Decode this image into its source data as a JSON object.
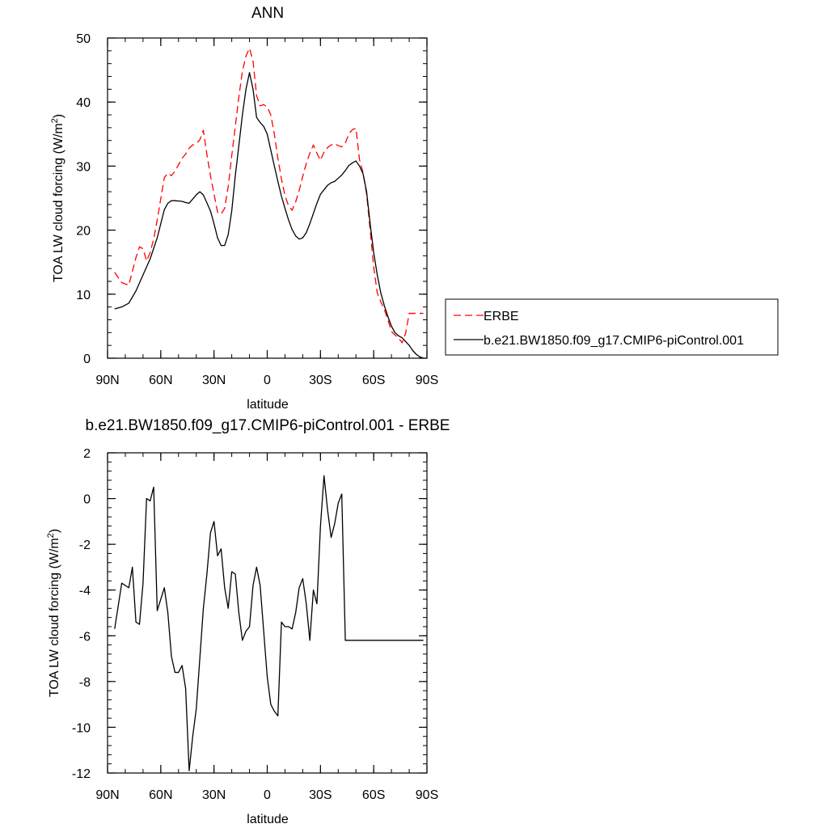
{
  "chart_data": [
    {
      "type": "line",
      "title": "ANN",
      "xlabel": "latitude",
      "ylabel": "TOA LW cloud forcing (W/m",
      "ylabel_sup": "2",
      "ylabel_close": ")",
      "xlim": [
        90,
        -90
      ],
      "ylim": [
        0,
        50
      ],
      "x_ticks": [
        {
          "value": 90,
          "label": "90N"
        },
        {
          "value": 60,
          "label": "60N"
        },
        {
          "value": 30,
          "label": "30N"
        },
        {
          "value": 0,
          "label": "0"
        },
        {
          "value": -30,
          "label": "30S"
        },
        {
          "value": -60,
          "label": "60S"
        },
        {
          "value": -90,
          "label": "90S"
        }
      ],
      "y_ticks": [
        {
          "value": 0,
          "label": "0"
        },
        {
          "value": 10,
          "label": "10"
        },
        {
          "value": 20,
          "label": "20"
        },
        {
          "value": 30,
          "label": "30"
        },
        {
          "value": 40,
          "label": "40"
        },
        {
          "value": 50,
          "label": "50"
        }
      ],
      "legend_position": "right",
      "series": [
        {
          "name": "ERBE",
          "color": "#ff0000",
          "dash": true,
          "x": [
            86,
            82,
            78,
            74,
            72,
            70,
            68,
            66,
            64,
            62,
            58,
            56,
            54,
            52,
            48,
            46,
            44,
            42,
            40,
            38,
            36,
            34,
            32,
            28,
            26,
            24,
            22,
            20,
            18,
            16,
            14,
            12,
            10,
            8,
            6,
            4,
            2,
            0,
            -2,
            -4,
            -6,
            -8,
            -10,
            -12,
            -14,
            -16,
            -18,
            -20,
            -22,
            -24,
            -26,
            -28,
            -30,
            -32,
            -34,
            -36,
            -38,
            -40,
            -42,
            -44,
            -46,
            -48,
            -50,
            -52,
            -54,
            -56,
            -58,
            -60,
            -62,
            -64,
            -66,
            -68,
            -70,
            -72,
            -74,
            -76,
            -78,
            -80,
            -82,
            -84,
            -86,
            -88
          ],
          "y": [
            13.4,
            11.8,
            11.4,
            15.7,
            17.4,
            17.1,
            15.2,
            16.5,
            18.6,
            21.6,
            28.2,
            28.9,
            28.5,
            29.2,
            31.2,
            31.9,
            32.8,
            33.3,
            33.5,
            34.1,
            35.6,
            31.8,
            28.5,
            22.8,
            22.5,
            23.4,
            26.8,
            31.6,
            36.2,
            40.8,
            44.8,
            47.2,
            48.4,
            46.4,
            41.0,
            39.4,
            39.6,
            39.2,
            38.0,
            35.0,
            31.2,
            28.0,
            25.4,
            23.8,
            23.1,
            24.4,
            26.2,
            28.4,
            30.4,
            32.0,
            33.3,
            32.0,
            30.9,
            32.2,
            32.9,
            33.3,
            33.5,
            33.2,
            33.0,
            33.6,
            35.0,
            35.7,
            35.9,
            31.0,
            29.0,
            25.6,
            20.0,
            14.2,
            10.2,
            8.8,
            7.6,
            6.0,
            4.2,
            3.6,
            3.2,
            2.4,
            3.9,
            7.0,
            7.0,
            7.0,
            7.0,
            7.0
          ]
        },
        {
          "name": "b.e21.BW1850.f09_g17.CMIP6-piControl.001",
          "color": "#000000",
          "dash": false,
          "x": [
            86,
            82,
            78,
            74,
            70,
            66,
            62,
            58,
            56,
            54,
            52,
            48,
            46,
            44,
            40,
            38,
            36,
            32,
            30,
            28,
            26,
            24,
            22,
            20,
            18,
            16,
            14,
            12,
            10,
            8,
            6,
            4,
            2,
            0,
            -2,
            -4,
            -6,
            -8,
            -10,
            -12,
            -14,
            -16,
            -18,
            -20,
            -22,
            -24,
            -26,
            -28,
            -30,
            -32,
            -34,
            -36,
            -38,
            -40,
            -42,
            -44,
            -46,
            -48,
            -50,
            -52,
            -54,
            -56,
            -58,
            -60,
            -62,
            -64,
            -66,
            -68,
            -70,
            -72,
            -74,
            -76,
            -78,
            -80,
            -82,
            -84,
            -86,
            -88
          ],
          "y": [
            7.7,
            8.0,
            8.6,
            10.5,
            13.0,
            15.5,
            18.8,
            23.2,
            24.2,
            24.6,
            24.6,
            24.5,
            24.3,
            24.2,
            25.5,
            26.0,
            25.5,
            23.0,
            21.0,
            18.8,
            17.6,
            17.6,
            19.3,
            23.0,
            28.5,
            33.2,
            38.0,
            42.0,
            44.6,
            42.0,
            37.6,
            36.8,
            36.2,
            35.0,
            32.5,
            30.0,
            27.6,
            25.3,
            23.4,
            21.6,
            20.1,
            19.1,
            18.6,
            18.8,
            19.6,
            21.0,
            22.6,
            24.2,
            25.6,
            26.3,
            27.0,
            27.4,
            27.6,
            28.1,
            28.6,
            29.3,
            30.1,
            30.5,
            30.8,
            30.0,
            28.8,
            26.0,
            21.0,
            16.5,
            13.0,
            10.2,
            8.2,
            6.5,
            5.0,
            4.0,
            3.5,
            3.2,
            2.6,
            2.0,
            1.2,
            0.6,
            0.2,
            0.0
          ]
        }
      ]
    },
    {
      "type": "line",
      "title": "b.e21.BW1850.f09_g17.CMIP6-piControl.001 - ERBE",
      "xlabel": "latitude",
      "ylabel": "TOA LW cloud forcing (W/m",
      "ylabel_sup": "2",
      "ylabel_close": ")",
      "xlim": [
        90,
        -90
      ],
      "ylim": [
        -12,
        2
      ],
      "x_ticks": [
        {
          "value": 90,
          "label": "90N"
        },
        {
          "value": 60,
          "label": "60N"
        },
        {
          "value": 30,
          "label": "30N"
        },
        {
          "value": 0,
          "label": "0"
        },
        {
          "value": -30,
          "label": "30S"
        },
        {
          "value": -60,
          "label": "60S"
        },
        {
          "value": -90,
          "label": "90S"
        }
      ],
      "y_ticks": [
        {
          "value": 2,
          "label": "2"
        },
        {
          "value": 0,
          "label": "0"
        },
        {
          "value": -2,
          "label": "-2"
        },
        {
          "value": -4,
          "label": "-4"
        },
        {
          "value": -6,
          "label": "-6"
        },
        {
          "value": -8,
          "label": "-8"
        },
        {
          "value": -10,
          "label": "-10"
        },
        {
          "value": -12,
          "label": "-12"
        }
      ],
      "series": [
        {
          "color": "#000000",
          "dash": false,
          "x": [
            86,
            82,
            78,
            76,
            74,
            72,
            70,
            68,
            66,
            64,
            62,
            60,
            58,
            56,
            54,
            52,
            50,
            48,
            46,
            44,
            42,
            40,
            38,
            36,
            34,
            32,
            30,
            28,
            26,
            24,
            22,
            20,
            18,
            16,
            14,
            12,
            10,
            8,
            6,
            4,
            2,
            0,
            -2,
            -4,
            -6,
            -8,
            -10,
            -12,
            -14,
            -16,
            -18,
            -20,
            -22,
            -24,
            -26,
            -28,
            -30,
            -32,
            -34,
            -36,
            -38,
            -40,
            -42,
            -44,
            -46,
            -48,
            -50,
            -52,
            -54,
            -56,
            -58,
            -60,
            -62,
            -64,
            -66,
            -68,
            -70,
            -72,
            -74,
            -76,
            -78,
            -80,
            -82,
            -84,
            -86,
            -88
          ],
          "y": [
            -5.7,
            -3.7,
            -3.9,
            -3.0,
            -5.4,
            -5.5,
            -3.7,
            0.0,
            -0.1,
            0.5,
            -4.9,
            -4.4,
            -3.9,
            -5.0,
            -6.9,
            -7.6,
            -7.6,
            -7.3,
            -8.3,
            -11.9,
            -10.4,
            -9.2,
            -7.0,
            -4.8,
            -3.3,
            -1.5,
            -1.0,
            -2.5,
            -2.2,
            -3.9,
            -4.8,
            -3.2,
            -3.3,
            -5.0,
            -6.2,
            -5.8,
            -5.6,
            -3.8,
            -3.0,
            -3.8,
            -5.8,
            -7.8,
            -9.0,
            -9.3,
            -9.5,
            -5.4,
            -5.6,
            -5.6,
            -5.7,
            -5.0,
            -3.9,
            -3.5,
            -4.6,
            -6.2,
            -4.0,
            -4.6,
            -1.2,
            1.0,
            -0.5,
            -1.7,
            -1.1,
            -0.2,
            0.2,
            -6.2,
            -6.2,
            -6.2,
            -6.2,
            -6.2,
            -6.2,
            -6.2,
            -6.2,
            -6.2,
            -6.2,
            -6.2,
            -6.2,
            -6.2,
            -6.2,
            -6.2,
            -6.2,
            -6.2,
            -6.2,
            -6.2,
            -6.2,
            -6.2,
            -6.2,
            -6.2
          ]
        }
      ]
    }
  ]
}
